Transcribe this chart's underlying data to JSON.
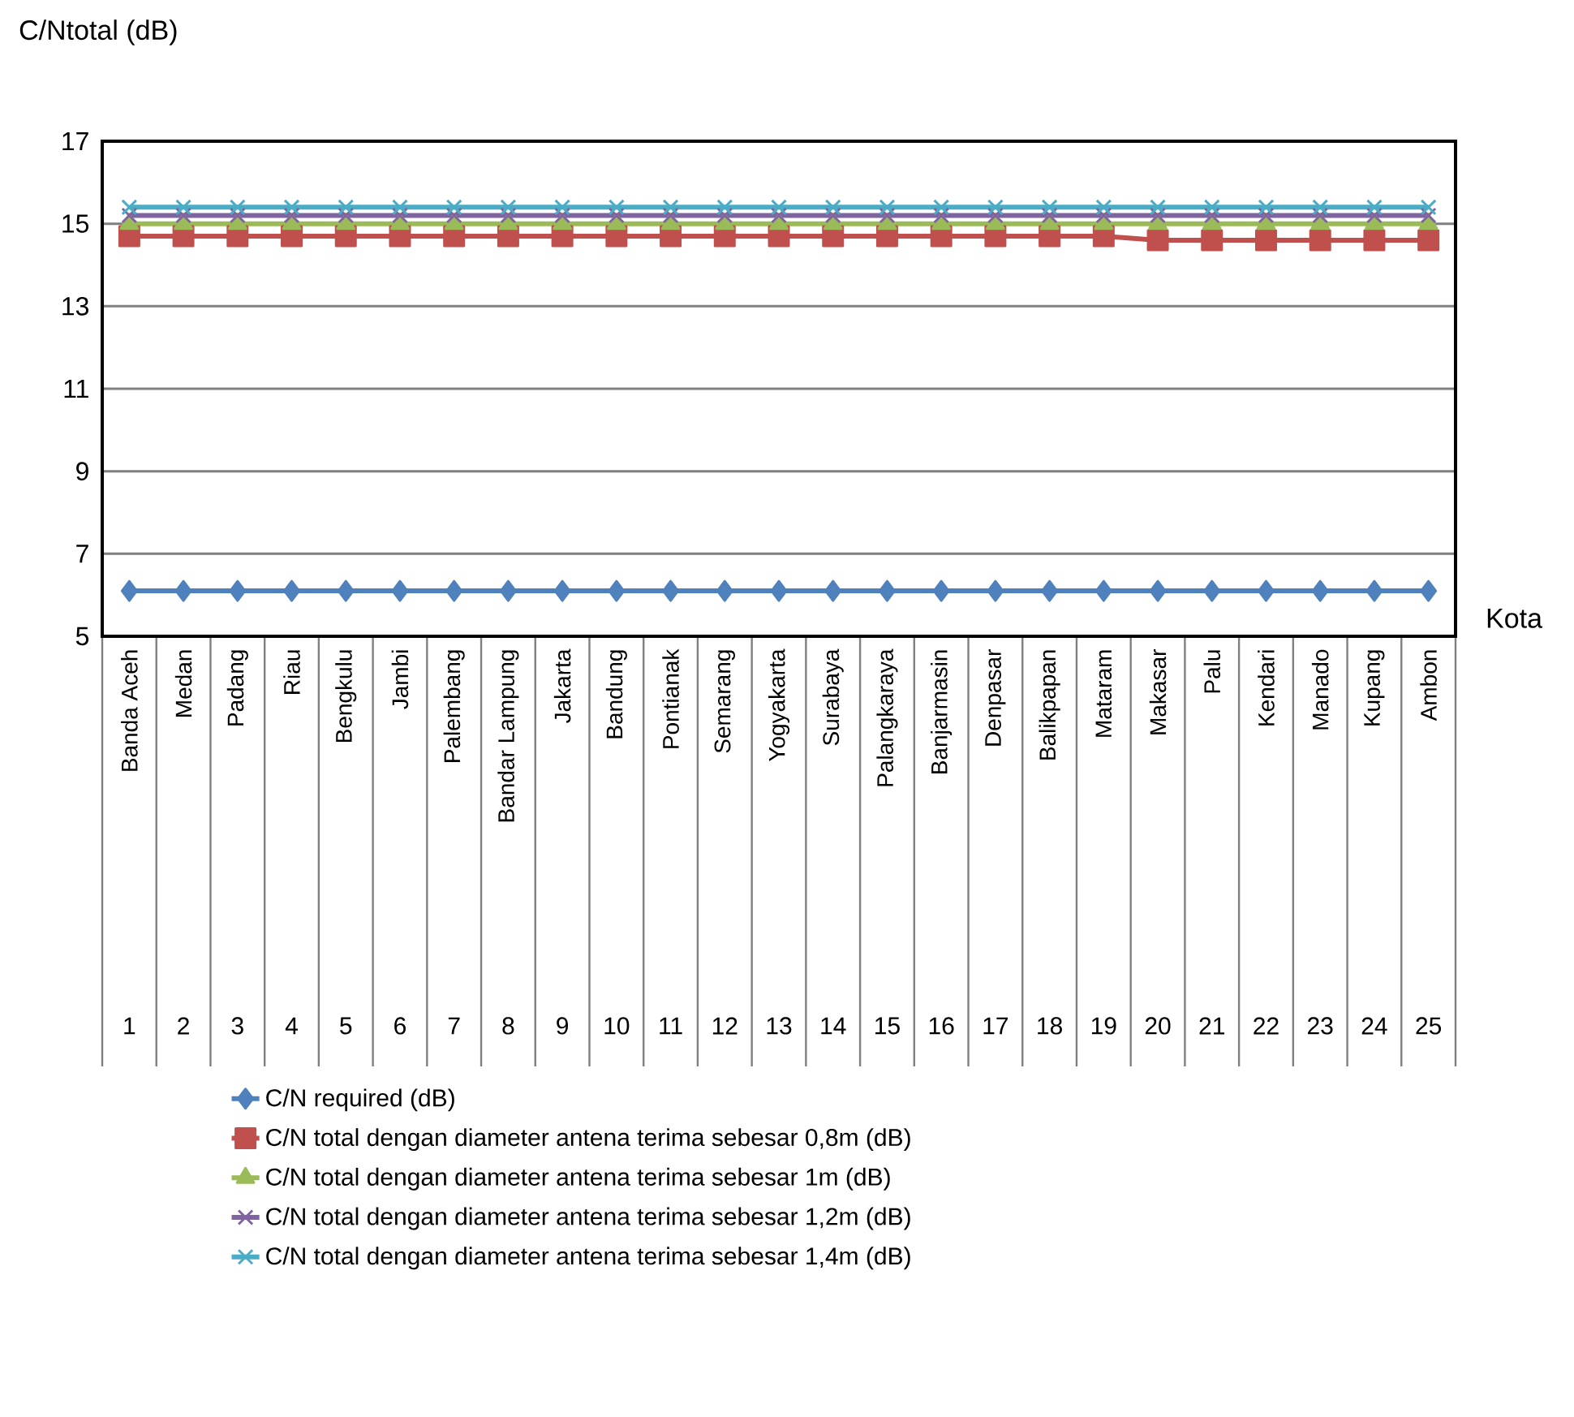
{
  "chart_data": {
    "type": "line",
    "ylabel": "C/Ntotal (dB)",
    "xlabel": "Kota",
    "categories": [
      "Banda Aceh",
      "Medan",
      "Padang",
      "Riau",
      "Bengkulu",
      "Jambi",
      "Palembang",
      "Bandar Lampung",
      "Jakarta",
      "Bandung",
      "Pontianak",
      "Semarang",
      "Yogyakarta",
      "Surabaya",
      "Palangkaraya",
      "Banjarmasin",
      "Denpasar",
      "Balikpapan",
      "Mataram",
      "Makasar",
      "Palu",
      "Kendari",
      "Manado",
      "Kupang",
      "Ambon"
    ],
    "annotations": [
      "1",
      "2",
      "3",
      "4",
      "5",
      "6",
      "7",
      "8",
      "9",
      "10",
      "11",
      "12",
      "13",
      "14",
      "15",
      "16",
      "17",
      "18",
      "19",
      "20",
      "21",
      "22",
      "23",
      "24",
      "25"
    ],
    "series": [
      {
        "name": "C/N required (dB)",
        "color": "#4f81bd",
        "marker": "diamond",
        "values": [
          6.1,
          6.1,
          6.1,
          6.1,
          6.1,
          6.1,
          6.1,
          6.1,
          6.1,
          6.1,
          6.1,
          6.1,
          6.1,
          6.1,
          6.1,
          6.1,
          6.1,
          6.1,
          6.1,
          6.1,
          6.1,
          6.1,
          6.1,
          6.1,
          6.1
        ]
      },
      {
        "name": "C/N total dengan diameter antena terima sebesar 0,8m (dB)",
        "color": "#c0504d",
        "marker": "square",
        "values": [
          14.7,
          14.7,
          14.7,
          14.7,
          14.7,
          14.7,
          14.7,
          14.7,
          14.7,
          14.7,
          14.7,
          14.7,
          14.7,
          14.7,
          14.7,
          14.7,
          14.7,
          14.7,
          14.7,
          14.6,
          14.6,
          14.6,
          14.6,
          14.6,
          14.6
        ]
      },
      {
        "name": "C/N total dengan diameter antena terima sebesar 1m (dB)",
        "color": "#9bbb59",
        "marker": "triangle",
        "values": [
          15.0,
          15.0,
          15.0,
          15.0,
          15.0,
          15.0,
          15.0,
          15.0,
          15.0,
          15.0,
          15.0,
          15.0,
          15.0,
          15.0,
          15.0,
          15.0,
          15.0,
          15.0,
          15.0,
          15.0,
          15.0,
          15.0,
          15.0,
          15.0,
          15.0
        ]
      },
      {
        "name": "C/N total dengan diameter antena terima sebesar 1,2m (dB)",
        "color": "#8064a2",
        "marker": "cross",
        "values": [
          15.2,
          15.2,
          15.2,
          15.2,
          15.2,
          15.2,
          15.2,
          15.2,
          15.2,
          15.2,
          15.2,
          15.2,
          15.2,
          15.2,
          15.2,
          15.2,
          15.2,
          15.2,
          15.2,
          15.2,
          15.2,
          15.2,
          15.2,
          15.2,
          15.2
        ]
      },
      {
        "name": "C/N total dengan diameter antena terima sebesar 1,4m (dB)",
        "color": "#4bacc6",
        "marker": "cross",
        "values": [
          15.4,
          15.4,
          15.4,
          15.4,
          15.4,
          15.4,
          15.4,
          15.4,
          15.4,
          15.4,
          15.4,
          15.4,
          15.4,
          15.4,
          15.4,
          15.4,
          15.4,
          15.4,
          15.4,
          15.4,
          15.4,
          15.4,
          15.4,
          15.4,
          15.4
        ]
      }
    ],
    "ylim": [
      5,
      17
    ],
    "yticks": [
      5,
      7,
      9,
      11,
      13,
      15,
      17
    ],
    "grid": "y",
    "legend": "bottom",
    "line_style": "solid"
  }
}
